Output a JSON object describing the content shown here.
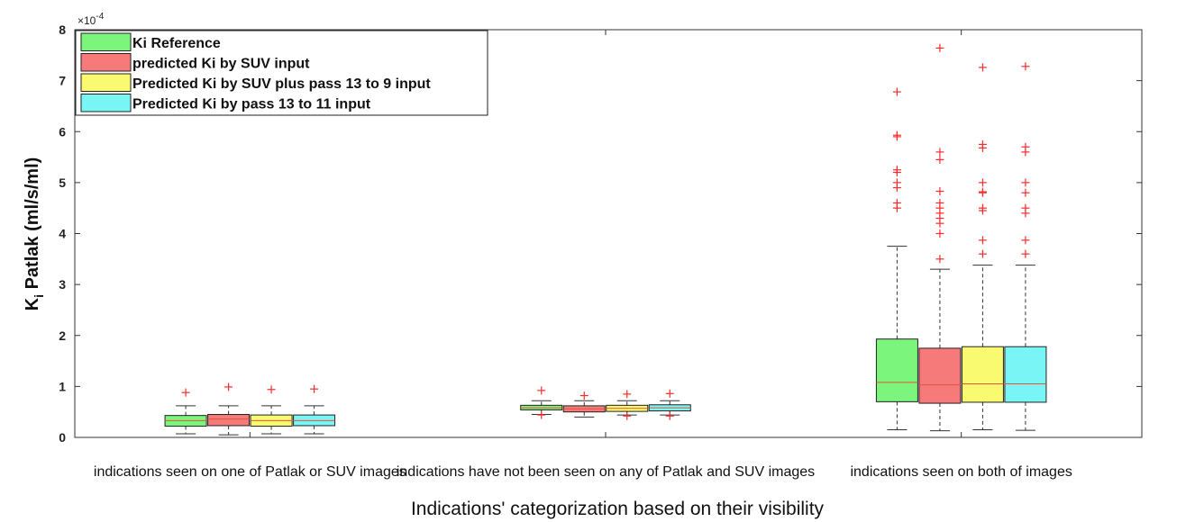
{
  "chart_data": {
    "type": "box",
    "xlabel": "Indications' categorization based on their visibility",
    "ylabel_main": "K",
    "ylabel_sub": "i",
    "ylabel_rest": " Patlak (ml/s/ml)",
    "y_multiplier": "×10",
    "y_multiplier_exp": "-4",
    "ylim": [
      0,
      8
    ],
    "y_ticks": [
      "0",
      "1",
      "2",
      "3",
      "4",
      "5",
      "6",
      "7",
      "8"
    ],
    "legend_position": "top-left",
    "categories": [
      "indications seen on one of Patlak or SUV images",
      "indications have not been seen on any of Patlak and SUV images",
      "indications seen on both of images"
    ],
    "series": [
      {
        "name": "Ki Reference",
        "color": "#7CF57C",
        "boxes": [
          {
            "whisker_low": 0.07,
            "q1": 0.22,
            "median": 0.33,
            "q3": 0.43,
            "whisker_high": 0.62,
            "outliers": [
              0.88
            ]
          },
          {
            "whisker_low": 0.45,
            "q1": 0.54,
            "median": 0.58,
            "q3": 0.63,
            "whisker_high": 0.72,
            "outliers": [
              0.92,
              0.44
            ]
          },
          {
            "whisker_low": 0.15,
            "q1": 0.7,
            "median": 1.08,
            "q3": 1.93,
            "whisker_high": 3.75,
            "outliers": [
              4.5,
              4.6,
              4.9,
              5.0,
              5.2,
              5.25,
              5.9,
              5.93,
              6.78
            ]
          }
        ]
      },
      {
        "name": "predicted Ki by SUV input",
        "color": "#F77A7A",
        "boxes": [
          {
            "whisker_low": 0.05,
            "q1": 0.23,
            "median": 0.36,
            "q3": 0.45,
            "whisker_high": 0.62,
            "outliers": [
              0.99
            ]
          },
          {
            "whisker_low": 0.4,
            "q1": 0.5,
            "median": 0.56,
            "q3": 0.62,
            "whisker_high": 0.72,
            "outliers": [
              0.82
            ]
          },
          {
            "whisker_low": 0.13,
            "q1": 0.67,
            "median": 1.03,
            "q3": 1.75,
            "whisker_high": 3.3,
            "outliers": [
              3.5,
              4.0,
              4.2,
              4.3,
              4.4,
              4.5,
              4.6,
              4.83,
              5.45,
              5.6,
              7.64
            ]
          }
        ]
      },
      {
        "name": "Predicted Ki by SUV plus pass 13 to 9 input",
        "color": "#FAFA70",
        "boxes": [
          {
            "whisker_low": 0.07,
            "q1": 0.22,
            "median": 0.33,
            "q3": 0.44,
            "whisker_high": 0.62,
            "outliers": [
              0.94
            ]
          },
          {
            "whisker_low": 0.44,
            "q1": 0.51,
            "median": 0.57,
            "q3": 0.63,
            "whisker_high": 0.72,
            "outliers": [
              0.85,
              0.42
            ]
          },
          {
            "whisker_low": 0.15,
            "q1": 0.69,
            "median": 1.05,
            "q3": 1.78,
            "whisker_high": 3.38,
            "outliers": [
              3.6,
              3.87,
              4.45,
              4.5,
              4.8,
              4.82,
              5.0,
              5.68,
              5.75,
              7.26
            ]
          }
        ]
      },
      {
        "name": "Predicted Ki by pass 13 to 11 input",
        "color": "#7AF5F5",
        "boxes": [
          {
            "whisker_low": 0.07,
            "q1": 0.23,
            "median": 0.33,
            "q3": 0.44,
            "whisker_high": 0.62,
            "outliers": [
              0.95
            ]
          },
          {
            "whisker_low": 0.44,
            "q1": 0.52,
            "median": 0.58,
            "q3": 0.64,
            "whisker_high": 0.72,
            "outliers": [
              0.86,
              0.42
            ]
          },
          {
            "whisker_low": 0.14,
            "q1": 0.69,
            "median": 1.05,
            "q3": 1.78,
            "whisker_high": 3.38,
            "outliers": [
              3.6,
              3.87,
              4.4,
              4.5,
              4.8,
              5.0,
              5.6,
              5.7,
              7.28
            ]
          }
        ]
      }
    ]
  }
}
